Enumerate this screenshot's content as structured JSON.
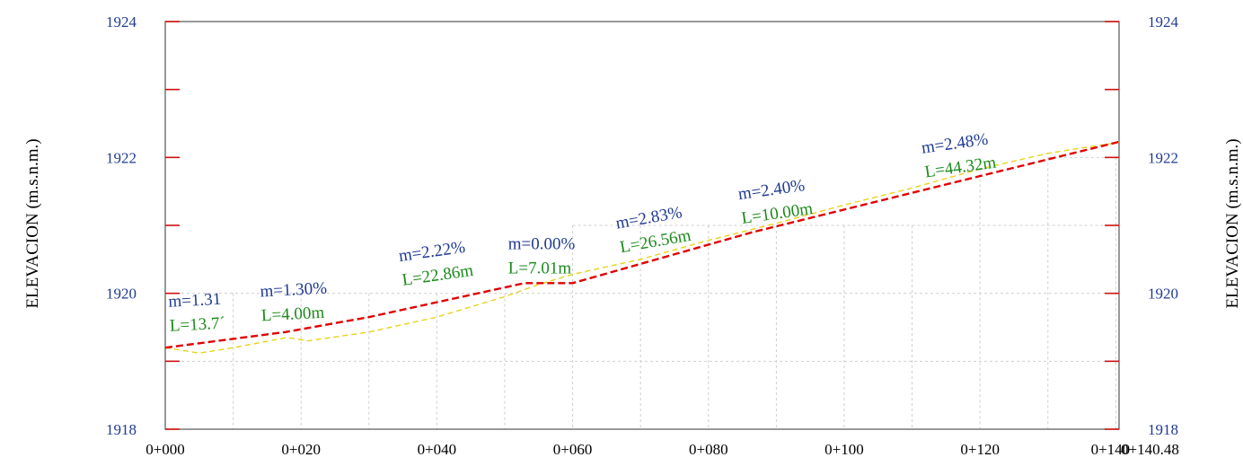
{
  "chart_data": {
    "type": "line",
    "xlim": [
      0,
      140.48
    ],
    "ylim": [
      1918,
      1924
    ],
    "ylabel_left": "ELEVACION (m.s.n.m.)",
    "ylabel_right": "ELEVACION (m.s.n.m.)",
    "y_ticks": [
      {
        "value": 1918,
        "label": "1918"
      },
      {
        "value": 1920,
        "label": "1920"
      },
      {
        "value": 1922,
        "label": "1922"
      },
      {
        "value": 1924,
        "label": "1924"
      }
    ],
    "x_ticks": [
      {
        "value": 0,
        "label": "0+000"
      },
      {
        "value": 20,
        "label": "0+020"
      },
      {
        "value": 40,
        "label": "0+040"
      },
      {
        "value": 60,
        "label": "0+060"
      },
      {
        "value": 80,
        "label": "0+080"
      },
      {
        "value": 100,
        "label": "0+100"
      },
      {
        "value": 120,
        "label": "0+120"
      },
      {
        "value": 140,
        "label": "0+140"
      },
      {
        "value": 140.48,
        "label": "0+140.48"
      }
    ],
    "grid": true,
    "series": [
      {
        "role": "design_grade",
        "color": "#e00000",
        "style": "dashed",
        "x": [
          0,
          17.7,
          30,
          52.9,
          60,
          86.5,
          140.48
        ],
        "y": [
          1919.2,
          1919.43,
          1919.65,
          1920.15,
          1920.15,
          1920.9,
          1922.23
        ]
      },
      {
        "role": "terrain",
        "color": "#e8d21a",
        "style": "dashed",
        "x": [
          0,
          5,
          10,
          18,
          21,
          30,
          40,
          50,
          55,
          60,
          70,
          80,
          90,
          100,
          110,
          120,
          130,
          135,
          140.48
        ],
        "y": [
          1919.2,
          1919.12,
          1919.2,
          1919.35,
          1919.3,
          1919.43,
          1919.65,
          1919.95,
          1920.13,
          1920.28,
          1920.5,
          1920.78,
          1921.03,
          1921.3,
          1921.55,
          1921.83,
          1922.06,
          1922.14,
          1922.22
        ]
      }
    ],
    "segments": [
      {
        "slope": "m=1.31",
        "length": "L=13.7´",
        "x": 0.5,
        "y": 1919.8,
        "angle": -3
      },
      {
        "slope": "m=1.30%",
        "length": "L=4.00m",
        "x": 14.0,
        "y": 1919.95,
        "angle": -3
      },
      {
        "slope": "m=2.22%",
        "length": "L=22.86m",
        "x": 34.5,
        "y": 1920.47,
        "angle": -8
      },
      {
        "slope": "m=0.00%",
        "length": "L=7.01m",
        "x": 50.5,
        "y": 1920.65,
        "angle": 0
      },
      {
        "slope": "m=2.83%",
        "length": "L=26.56m",
        "x": 66.5,
        "y": 1920.95,
        "angle": -10
      },
      {
        "slope": "m=2.40%",
        "length": "L=10.00m",
        "x": 84.5,
        "y": 1921.38,
        "angle": -8
      },
      {
        "slope": "m=2.48%",
        "length": "L=44.32m",
        "x": 111.5,
        "y": 1922.06,
        "angle": -8
      }
    ]
  }
}
